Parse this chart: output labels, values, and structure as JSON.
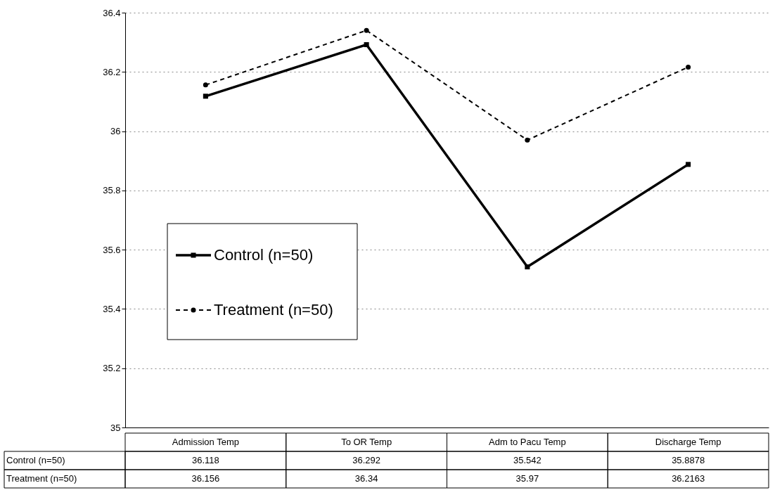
{
  "chart_data": {
    "type": "line",
    "categories": [
      "Admission Temp",
      "To OR Temp",
      "Adm to Pacu Temp",
      "Discharge Temp"
    ],
    "series": [
      {
        "name": "Control (n=50)",
        "color": "#000000",
        "marker": "square",
        "line_style": "solid",
        "values": [
          36.118,
          36.292,
          35.542,
          35.8878
        ]
      },
      {
        "name": "Treatment (n=50)",
        "color": "#000000",
        "marker": "circle",
        "line_style": "dashed",
        "values": [
          36.156,
          36.34,
          35.97,
          36.2163
        ]
      }
    ],
    "ylim": [
      35,
      36.4
    ],
    "yticks": [
      35,
      35.2,
      35.4,
      35.6,
      35.8,
      36,
      36.2,
      36.4
    ],
    "grid": "y",
    "legend": "left",
    "data_labels": true
  }
}
